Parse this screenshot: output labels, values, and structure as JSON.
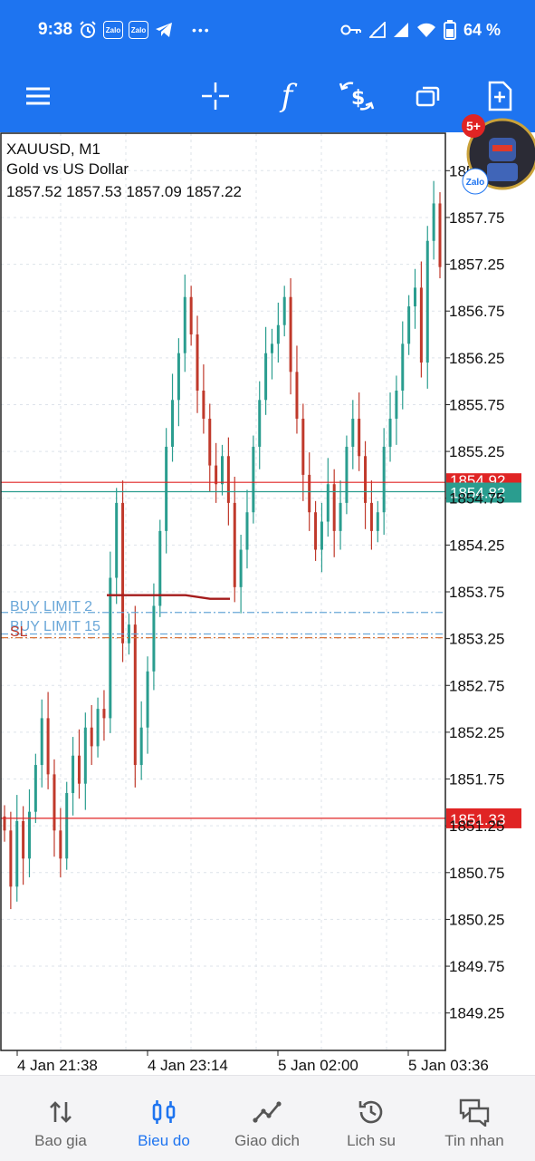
{
  "status_bar": {
    "time": "9:38",
    "notification_icons": [
      "alarm-icon",
      "zalo-icon",
      "zalo-icon",
      "telegram-icon",
      "more-dots-icon"
    ],
    "zalo_label": "Zalo",
    "more": "•••",
    "system_icons": [
      "key-icon",
      "signal-icon",
      "signal-icon",
      "wifi-icon",
      "battery-icon"
    ],
    "battery_percent": "64 %"
  },
  "toolbar": {
    "icons": [
      "menu-icon",
      "crosshair-icon",
      "indicators-icon",
      "trade-icon",
      "windows-icon",
      "new-order-icon"
    ],
    "indicator_glyph": "f"
  },
  "chart": {
    "symbol": "XAUUSD, M1",
    "description": "Gold vs US Dollar",
    "ohlc": "1857.52 1857.53 1857.09 1857.22",
    "order_labels": {
      "buy_limit_1": "BUY LIMIT 2",
      "buy_limit_2": "BUY LIMIT 15",
      "sl": "SL"
    },
    "price_tags": {
      "bid": "1854.82",
      "ask_hidden": "1854.92",
      "alert": "1851.33"
    },
    "y_top_cut": "1858.25",
    "y_labels": [
      "1857.75",
      "1857.25",
      "1856.75",
      "1856.25",
      "1855.75",
      "1855.25",
      "1854.75",
      "1854.25",
      "1853.75",
      "1853.25",
      "1852.75",
      "1852.25",
      "1851.75",
      "1851.25",
      "1850.75",
      "1850.25",
      "1849.75",
      "1849.25"
    ],
    "x_labels": [
      "4 Jan 21:38",
      "4 Jan 23:14",
      "5 Jan 02:00",
      "5 Jan 03:36"
    ],
    "colors": {
      "up": "#2a9d8f",
      "down": "#c0392b",
      "grid": "#dde3ea"
    }
  },
  "chart_data": {
    "type": "candlestick",
    "symbol": "XAUUSD",
    "timeframe": "M1",
    "ylim": [
      1848.85,
      1858.65
    ],
    "x_ticks": [
      "4 Jan 21:38",
      "4 Jan 23:14",
      "5 Jan 02:00",
      "5 Jan 03:36"
    ],
    "closes": [
      1851.2,
      1850.6,
      1851.3,
      1850.9,
      1851.4,
      1851.9,
      1852.4,
      1851.8,
      1851.2,
      1850.9,
      1851.6,
      1852.0,
      1851.7,
      1852.3,
      1852.1,
      1852.5,
      1852.4,
      1853.9,
      1854.7,
      1853.2,
      1853.4,
      1851.9,
      1852.3,
      1852.9,
      1853.6,
      1854.4,
      1855.3,
      1855.8,
      1856.3,
      1856.9,
      1856.5,
      1855.9,
      1855.6,
      1855.1,
      1854.9,
      1855.2,
      1854.7,
      1853.8,
      1854.2,
      1854.6,
      1855.3,
      1855.8,
      1856.3,
      1856.4,
      1856.6,
      1856.9,
      1856.1,
      1855.6,
      1855.0,
      1854.6,
      1854.2,
      1854.5,
      1854.9,
      1854.4,
      1854.7,
      1855.3,
      1855.6,
      1855.2,
      1854.7,
      1854.4,
      1854.6,
      1855.3,
      1855.6,
      1855.9,
      1856.4,
      1856.8,
      1857.0,
      1856.2,
      1857.5,
      1857.9,
      1857.22
    ],
    "order_levels": {
      "buy_limit_2": 1853.53,
      "buy_limit_15": 1853.3,
      "sl": 1853.26,
      "bid": 1854.82,
      "ask": 1854.92,
      "alert": 1851.33
    }
  },
  "bottom_nav": [
    {
      "label": "Bao gia",
      "icon": "quotes-icon",
      "active": false
    },
    {
      "label": "Bieu do",
      "icon": "chart-icon",
      "active": true
    },
    {
      "label": "Giao dich",
      "icon": "trade-icon",
      "active": false
    },
    {
      "label": "Lich su",
      "icon": "history-icon",
      "active": false
    },
    {
      "label": "Tin nhan",
      "icon": "messages-icon",
      "active": false
    }
  ],
  "bubble": {
    "badge": "5+",
    "app_label": "Zalo"
  },
  "theme": {
    "primary": "#1e74f0",
    "bid_tag": "#2a9d8f",
    "alert_tag": "#e02424",
    "nav_bg": "#f4f4f6"
  }
}
